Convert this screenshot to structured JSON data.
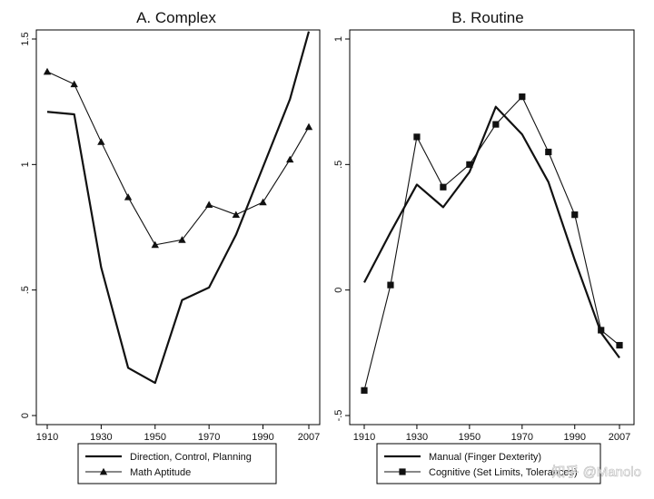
{
  "watermark": "知乎 @Manolo",
  "colors": {
    "line": "#111111",
    "frame": "#000000",
    "background": "#ffffff"
  },
  "chart_data": [
    {
      "type": "line",
      "title": "A. Complex",
      "x": [
        1910,
        1920,
        1930,
        1940,
        1950,
        1960,
        1970,
        1980,
        1990,
        2000,
        2007
      ],
      "xticks": [
        "1910",
        "1930",
        "1950",
        "1970",
        "1990",
        "2007"
      ],
      "xtick_values": [
        1910,
        1930,
        1950,
        1970,
        1990,
        2007
      ],
      "yticks": [
        "0",
        ".5",
        "1",
        "1.5"
      ],
      "ytick_values": [
        0,
        0.5,
        1,
        1.5
      ],
      "xlim": [
        1910,
        2007
      ],
      "ylim": [
        0,
        1.5
      ],
      "grid": false,
      "legend_position": "bottom",
      "series": [
        {
          "name": "Direction, Control, Planning",
          "marker": "none",
          "x": [
            1910,
            1920,
            1930,
            1940,
            1950,
            1960,
            1970,
            1980,
            1990,
            2000,
            2007
          ],
          "values": [
            1.21,
            1.2,
            0.59,
            0.19,
            0.13,
            0.46,
            0.51,
            0.72,
            0.99,
            1.26,
            1.53
          ]
        },
        {
          "name": "Math Aptitude",
          "marker": "triangle",
          "x": [
            1910,
            1920,
            1930,
            1940,
            1950,
            1960,
            1970,
            1980,
            1990,
            2000,
            2007
          ],
          "values": [
            1.37,
            1.32,
            1.09,
            0.87,
            0.68,
            0.7,
            0.84,
            0.8,
            0.85,
            1.02,
            1.15
          ]
        }
      ]
    },
    {
      "type": "line",
      "title": "B. Routine",
      "x": [
        1910,
        1920,
        1930,
        1940,
        1950,
        1960,
        1970,
        1980,
        1990,
        2000,
        2007
      ],
      "xticks": [
        "1910",
        "1930",
        "1950",
        "1970",
        "1990",
        "2007"
      ],
      "xtick_values": [
        1910,
        1930,
        1950,
        1970,
        1990,
        2007
      ],
      "yticks": [
        "-.5",
        "0",
        ".5",
        "1"
      ],
      "ytick_values": [
        -0.5,
        0,
        0.5,
        1
      ],
      "xlim": [
        1910,
        2007
      ],
      "ylim": [
        -0.5,
        1
      ],
      "grid": false,
      "legend_position": "bottom",
      "series": [
        {
          "name": "Manual (Finger Dexterity)",
          "marker": "none",
          "x": [
            1910,
            1920,
            1930,
            1940,
            1950,
            1960,
            1970,
            1980,
            1990,
            2000,
            2007
          ],
          "values": [
            0.03,
            0.23,
            0.42,
            0.33,
            0.47,
            0.73,
            0.62,
            0.43,
            0.12,
            -0.17,
            -0.27
          ]
        },
        {
          "name": "Cognitive (Set Limits, Tolerances)",
          "marker": "square",
          "x": [
            1910,
            1920,
            1930,
            1940,
            1950,
            1960,
            1970,
            1980,
            1990,
            2000,
            2007
          ],
          "values": [
            -0.4,
            0.02,
            0.61,
            0.41,
            0.5,
            0.66,
            0.77,
            0.55,
            0.3,
            -0.16,
            -0.22
          ]
        }
      ]
    }
  ]
}
